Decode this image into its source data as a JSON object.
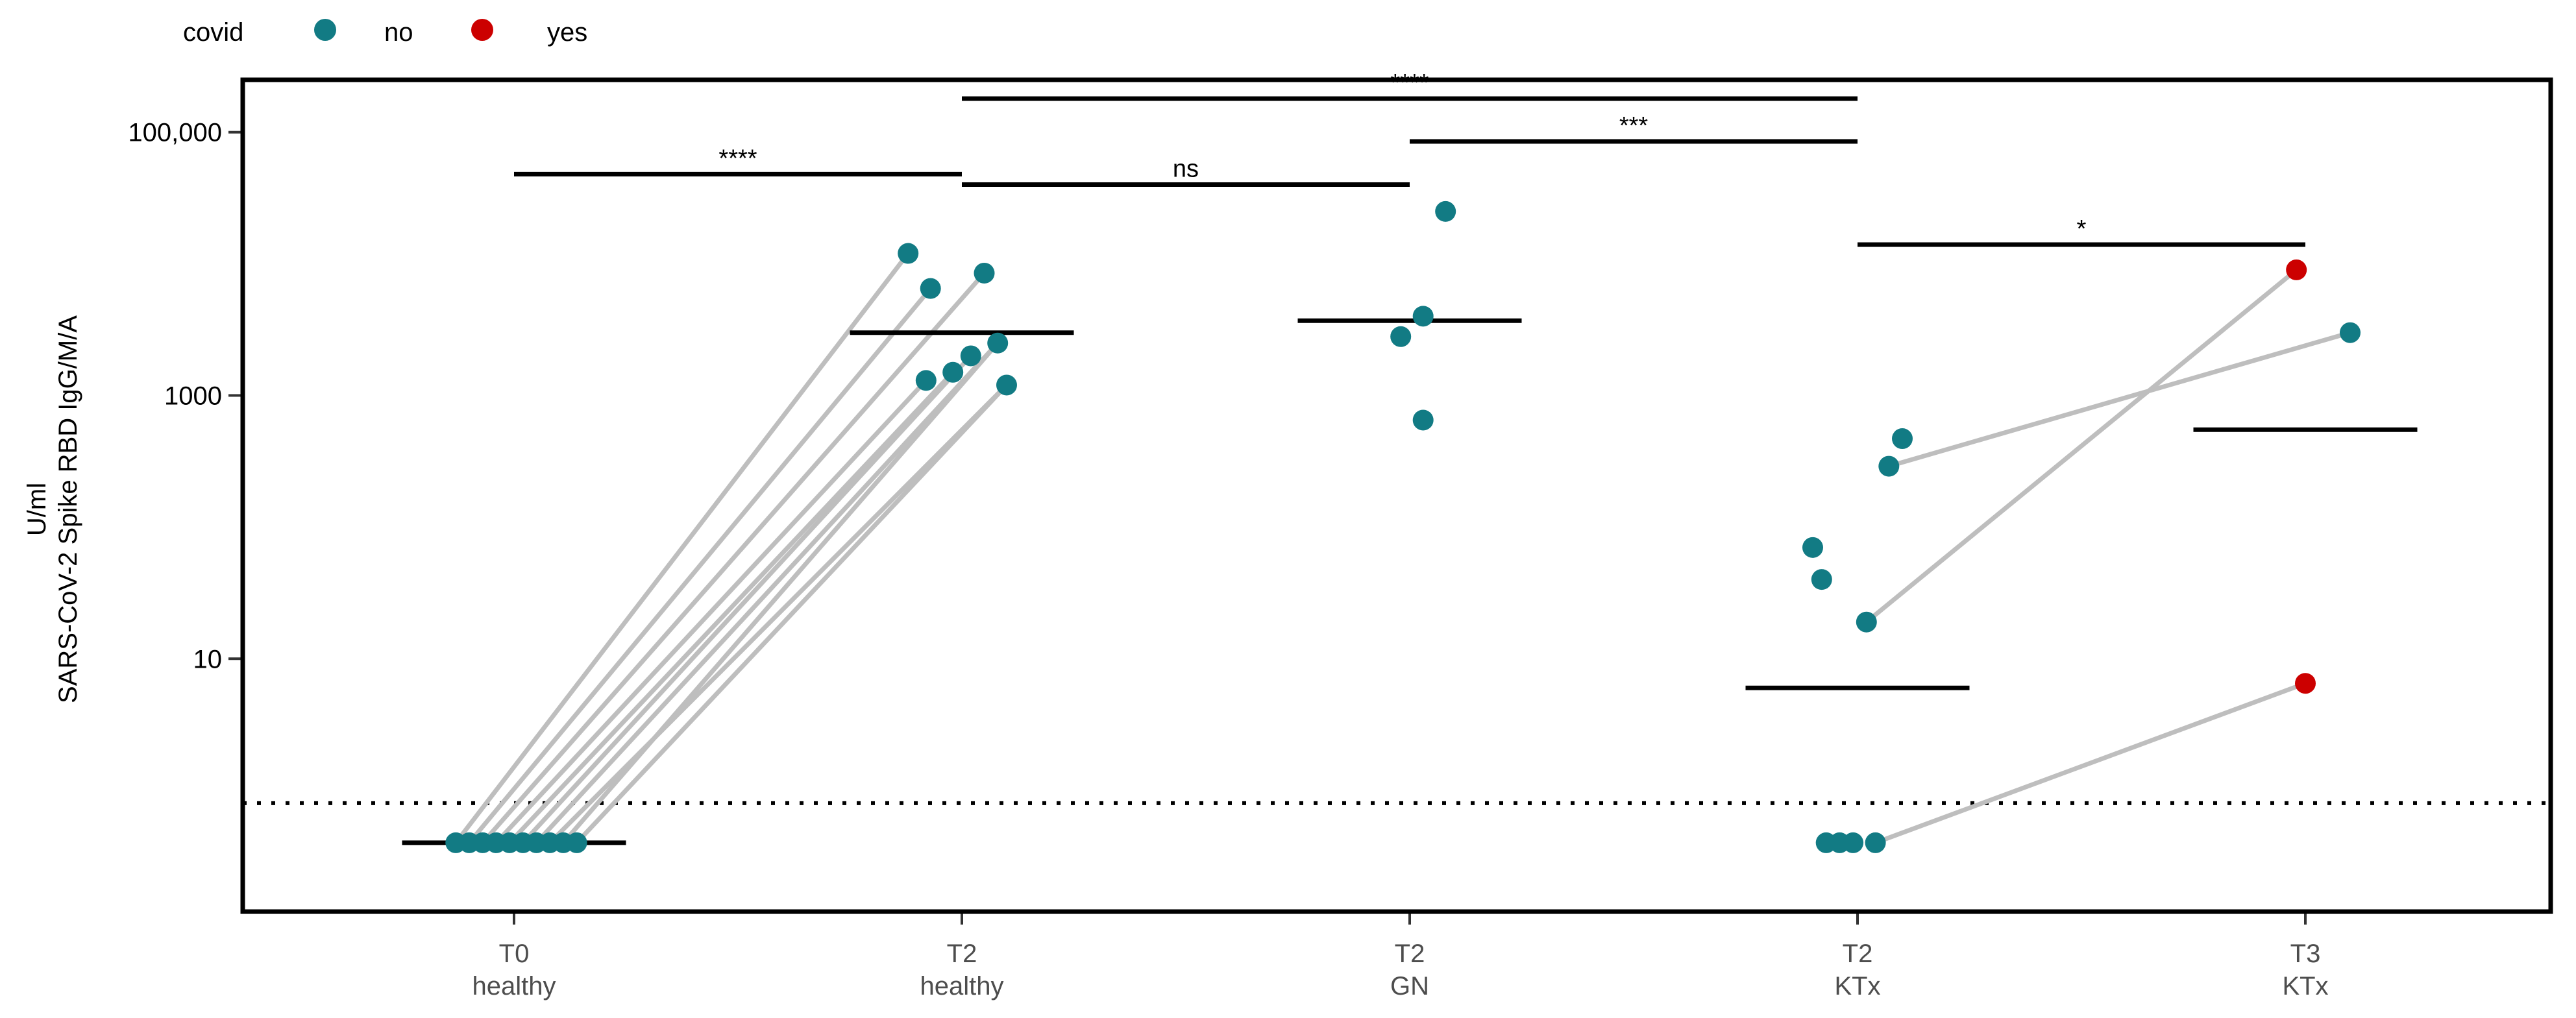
{
  "legend": {
    "title": "covid",
    "entries": [
      {
        "label": "no",
        "color": "#127B84"
      },
      {
        "label": "yes",
        "color": "#CC0000"
      }
    ]
  },
  "chart_data": {
    "type": "scatter",
    "scale": "log10",
    "ylabel_line1": "U/ml",
    "ylabel_line2": "SARS-CoV-2 Spike RBD IgG/M/A",
    "ylim": [
      0.12,
      250000
    ],
    "yticks": [
      {
        "value": 10,
        "label": "10"
      },
      {
        "value": 1000,
        "label": "1000"
      },
      {
        "value": 100000,
        "label": "100,000"
      }
    ],
    "threshold": 0.8,
    "groups": [
      {
        "line1": "T0",
        "line2": "healthy"
      },
      {
        "line1": "T2",
        "line2": "healthy"
      },
      {
        "line1": "T2",
        "line2": "GN"
      },
      {
        "line1": "T2",
        "line2": "KTx"
      },
      {
        "line1": "T3",
        "line2": "KTx"
      }
    ],
    "medians": [
      0.4,
      3000,
      3700,
      6,
      550
    ],
    "points": [
      {
        "group": 0,
        "jitter": -0.13,
        "y": 0.4,
        "covid": "no"
      },
      {
        "group": 0,
        "jitter": -0.1,
        "y": 0.4,
        "covid": "no"
      },
      {
        "group": 0,
        "jitter": -0.07,
        "y": 0.4,
        "covid": "no"
      },
      {
        "group": 0,
        "jitter": -0.04,
        "y": 0.4,
        "covid": "no"
      },
      {
        "group": 0,
        "jitter": -0.01,
        "y": 0.4,
        "covid": "no"
      },
      {
        "group": 0,
        "jitter": 0.02,
        "y": 0.4,
        "covid": "no"
      },
      {
        "group": 0,
        "jitter": 0.05,
        "y": 0.4,
        "covid": "no"
      },
      {
        "group": 0,
        "jitter": 0.08,
        "y": 0.4,
        "covid": "no"
      },
      {
        "group": 0,
        "jitter": 0.11,
        "y": 0.4,
        "covid": "no"
      },
      {
        "group": 0,
        "jitter": 0.14,
        "y": 0.4,
        "covid": "no"
      },
      {
        "group": 1,
        "jitter": -0.12,
        "y": 12000,
        "covid": "no"
      },
      {
        "group": 1,
        "jitter": -0.07,
        "y": 6500,
        "covid": "no"
      },
      {
        "group": 1,
        "jitter": 0.05,
        "y": 8500,
        "covid": "no"
      },
      {
        "group": 1,
        "jitter": -0.08,
        "y": 1300,
        "covid": "no"
      },
      {
        "group": 1,
        "jitter": -0.02,
        "y": 1500,
        "covid": "no"
      },
      {
        "group": 1,
        "jitter": 0.02,
        "y": 2000,
        "covid": "no"
      },
      {
        "group": 1,
        "jitter": 0.08,
        "y": 2500,
        "covid": "no"
      },
      {
        "group": 1,
        "jitter": 0.1,
        "y": 1200,
        "covid": "no"
      },
      {
        "group": 2,
        "jitter": 0.08,
        "y": 25000,
        "covid": "no"
      },
      {
        "group": 2,
        "jitter": 0.03,
        "y": 4000,
        "covid": "no"
      },
      {
        "group": 2,
        "jitter": -0.02,
        "y": 2800,
        "covid": "no"
      },
      {
        "group": 2,
        "jitter": 0.03,
        "y": 650,
        "covid": "no"
      },
      {
        "group": 3,
        "jitter": 0.1,
        "y": 470,
        "covid": "no"
      },
      {
        "group": 3,
        "jitter": 0.07,
        "y": 290,
        "covid": "no"
      },
      {
        "group": 3,
        "jitter": -0.1,
        "y": 70,
        "covid": "no"
      },
      {
        "group": 3,
        "jitter": -0.08,
        "y": 40,
        "covid": "no"
      },
      {
        "group": 3,
        "jitter": 0.02,
        "y": 19,
        "covid": "no"
      },
      {
        "group": 3,
        "jitter": -0.07,
        "y": 0.4,
        "covid": "no"
      },
      {
        "group": 3,
        "jitter": -0.04,
        "y": 0.4,
        "covid": "no"
      },
      {
        "group": 3,
        "jitter": -0.01,
        "y": 0.4,
        "covid": "no"
      },
      {
        "group": 3,
        "jitter": 0.04,
        "y": 0.4,
        "covid": "no"
      },
      {
        "group": 4,
        "jitter": -0.02,
        "y": 9000,
        "covid": "yes"
      },
      {
        "group": 4,
        "jitter": 0.1,
        "y": 3000,
        "covid": "no"
      },
      {
        "group": 4,
        "jitter": 0.0,
        "y": 6.5,
        "covid": "yes"
      }
    ],
    "pairs": [
      [
        0,
        10
      ],
      [
        1,
        11
      ],
      [
        2,
        12
      ],
      [
        3,
        13
      ],
      [
        4,
        14
      ],
      [
        5,
        15
      ],
      [
        6,
        16
      ],
      [
        7,
        17
      ],
      [
        8,
        16
      ],
      [
        9,
        17
      ],
      [
        26,
        31
      ],
      [
        23,
        32
      ],
      [
        30,
        33
      ]
    ],
    "comparisons": [
      {
        "from": 1,
        "to": 3,
        "y": 180000,
        "label": "****"
      },
      {
        "from": 0,
        "to": 1,
        "y": 48000,
        "label": "****"
      },
      {
        "from": 1,
        "to": 2,
        "y": 40000,
        "label": "ns"
      },
      {
        "from": 2,
        "to": 3,
        "y": 85000,
        "label": "***"
      },
      {
        "from": 3,
        "to": 4,
        "y": 14000,
        "label": "*"
      }
    ]
  }
}
